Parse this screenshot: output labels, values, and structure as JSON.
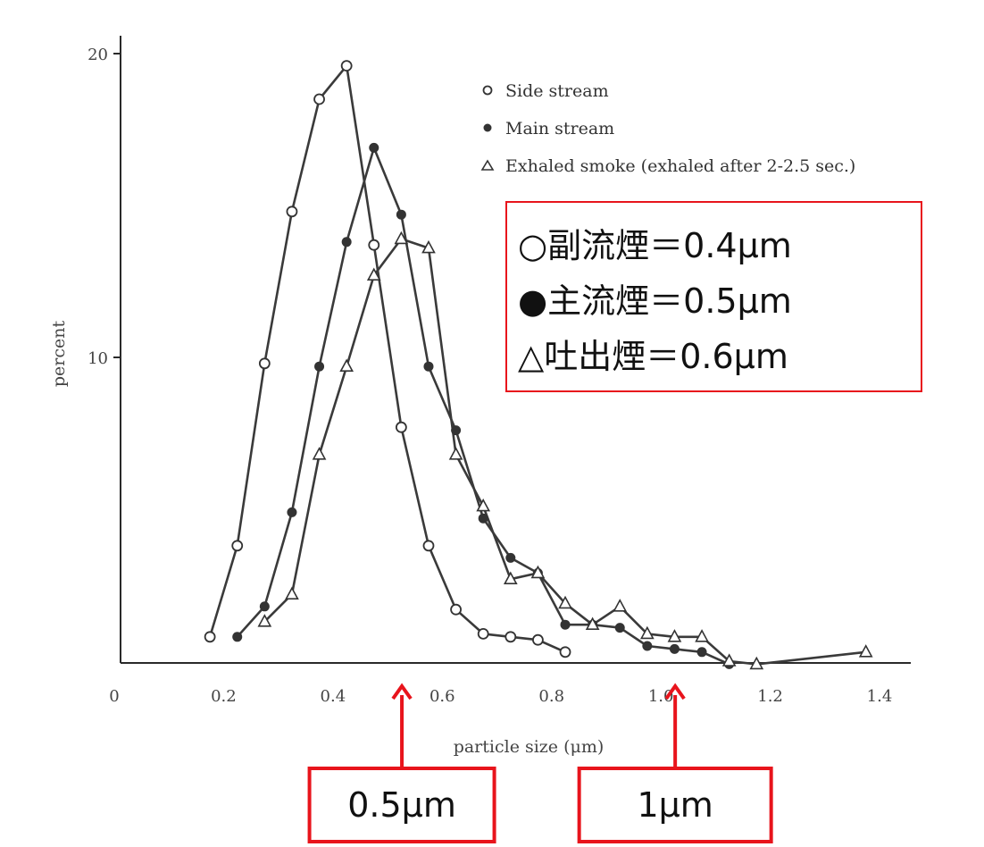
{
  "chart_data": {
    "type": "line",
    "title": "",
    "xlabel": "particle size (μm)",
    "ylabel": "percent",
    "xlim": [
      0,
      1.45
    ],
    "ylim": [
      0,
      20.6
    ],
    "x_ticks": [
      "0",
      "0.2",
      "0.4",
      "0.6",
      "0.8",
      "1.0",
      "1.2",
      "1.4"
    ],
    "x_tick_values": [
      0,
      0.2,
      0.4,
      0.6,
      0.8,
      1.0,
      1.2,
      1.4
    ],
    "y_ticks": [
      "10",
      "20"
    ],
    "y_tick_values": [
      10,
      20
    ],
    "grid": false,
    "legend_position": "top-right",
    "legend": [
      {
        "marker": "circle-open",
        "label": "Side stream"
      },
      {
        "marker": "circle-filled",
        "label": "Main stream"
      },
      {
        "marker": "triangle-open",
        "label": "Exhaled smoke (exhaled after 2-2.5 sec.)"
      }
    ],
    "series": [
      {
        "name": "Side stream",
        "marker": "circle-open",
        "x": [
          0.175,
          0.225,
          0.275,
          0.325,
          0.375,
          0.425,
          0.475,
          0.525,
          0.575,
          0.625,
          0.675,
          0.725,
          0.775,
          0.825
        ],
        "y": [
          0.8,
          3.8,
          9.8,
          14.8,
          18.5,
          19.6,
          13.7,
          7.7,
          3.8,
          1.7,
          0.9,
          0.8,
          0.7,
          0.3
        ]
      },
      {
        "name": "Main stream",
        "marker": "circle-filled",
        "x": [
          0.225,
          0.275,
          0.325,
          0.375,
          0.425,
          0.475,
          0.525,
          0.575,
          0.625,
          0.675,
          0.725,
          0.775,
          0.825,
          0.875,
          0.925,
          0.975,
          1.025,
          1.075,
          1.125
        ],
        "y": [
          0.8,
          1.8,
          4.9,
          9.7,
          13.8,
          16.9,
          14.7,
          9.7,
          7.6,
          4.7,
          3.4,
          2.9,
          1.2,
          1.2,
          1.1,
          0.5,
          0.4,
          0.3,
          -0.1
        ]
      },
      {
        "name": "Exhaled smoke (exhaled after 2-2.5 sec.)",
        "marker": "triangle-open",
        "x": [
          0.275,
          0.325,
          0.375,
          0.425,
          0.475,
          0.525,
          0.575,
          0.625,
          0.675,
          0.725,
          0.775,
          0.825,
          0.875,
          0.925,
          0.975,
          1.025,
          1.075,
          1.125,
          1.175,
          1.375
        ],
        "y": [
          1.3,
          2.2,
          6.8,
          9.7,
          12.7,
          13.9,
          13.6,
          6.8,
          5.1,
          2.7,
          2.9,
          1.9,
          1.2,
          1.8,
          0.9,
          0.8,
          0.8,
          0.0,
          -0.1,
          0.3
        ]
      }
    ],
    "annotations": {
      "summary_lines": [
        "○副流煙＝0.4μm",
        "●主流煙＝0.5μm",
        "△吐出煙＝0.6μm"
      ],
      "marker_callouts": [
        {
          "x_value": 0.5,
          "label": "0.5μm"
        },
        {
          "x_value": 1.0,
          "label": "1μm"
        }
      ],
      "accent_color": "#e8141c"
    }
  }
}
